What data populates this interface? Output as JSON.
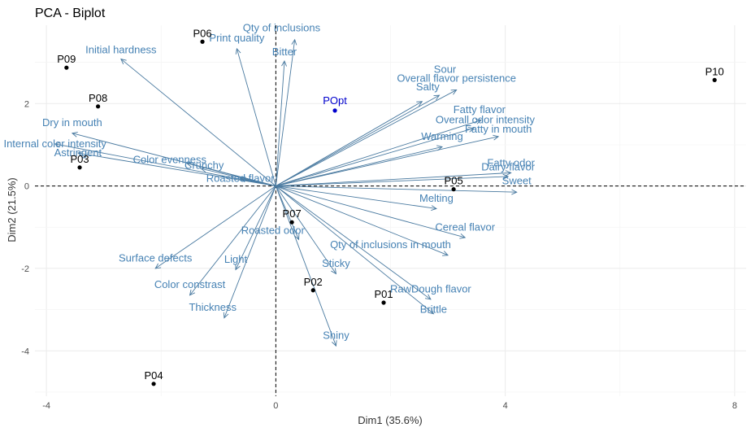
{
  "chart_data": {
    "type": "scatter",
    "title": "PCA - Biplot",
    "xlabel": "Dim1 (35.6%)",
    "ylabel": "Dim2 (21.5%)",
    "xlim": [
      -4.2,
      8.2
    ],
    "ylim": [
      -5.1,
      3.9
    ],
    "xticks": [
      -4,
      0,
      4,
      8
    ],
    "yticks": [
      -4,
      -2,
      0,
      2
    ],
    "grid": true,
    "colors": {
      "variables": "#4682b4",
      "individuals": "#000000",
      "supplementary": "#0000cd"
    },
    "individuals": [
      {
        "label": "P01",
        "x": 1.88,
        "y": -2.83
      },
      {
        "label": "P02",
        "x": 0.65,
        "y": -2.53
      },
      {
        "label": "P03",
        "x": -3.42,
        "y": 0.45
      },
      {
        "label": "P04",
        "x": -2.13,
        "y": -4.8
      },
      {
        "label": "P05",
        "x": 3.1,
        "y": -0.08
      },
      {
        "label": "P06",
        "x": -1.28,
        "y": 3.5
      },
      {
        "label": "P07",
        "x": 0.28,
        "y": -0.88
      },
      {
        "label": "P08",
        "x": -3.1,
        "y": 1.93
      },
      {
        "label": "P09",
        "x": -3.65,
        "y": 2.87
      },
      {
        "label": "P10",
        "x": 7.65,
        "y": 2.57
      }
    ],
    "supplementary": [
      {
        "label": "POpt",
        "x": 1.03,
        "y": 1.83
      }
    ],
    "variables": [
      {
        "label": "Qty of inclusions",
        "x": 0.33,
        "y": 3.55,
        "lx": 0.1,
        "ly": 3.83
      },
      {
        "label": "Print quality",
        "x": -0.68,
        "y": 3.33,
        "lx": -0.68,
        "ly": 3.58
      },
      {
        "label": "Bitter",
        "x": 0.15,
        "y": 3.03,
        "lx": 0.15,
        "ly": 3.25
      },
      {
        "label": "Initial hardness",
        "x": -2.7,
        "y": 3.08,
        "lx": -2.7,
        "ly": 3.3
      },
      {
        "label": "Sour",
        "x": 3.15,
        "y": 2.33,
        "lx": 2.95,
        "ly": 2.82
      },
      {
        "label": "Overall flavor persistence",
        "x": 2.85,
        "y": 2.2,
        "lx": 3.15,
        "ly": 2.61
      },
      {
        "label": "Salty",
        "x": 2.55,
        "y": 2.05,
        "lx": 2.65,
        "ly": 2.4
      },
      {
        "label": "Fatty flavor",
        "x": 3.58,
        "y": 1.6,
        "lx": 3.55,
        "ly": 1.85
      },
      {
        "label": "Overall odor intensity",
        "x": 3.45,
        "y": 1.4,
        "lx": 3.65,
        "ly": 1.6
      },
      {
        "label": "Fatty in mouth",
        "x": 3.88,
        "y": 1.2,
        "lx": 3.88,
        "ly": 1.37
      },
      {
        "label": "Warming",
        "x": 2.9,
        "y": 0.95,
        "lx": 2.9,
        "ly": 1.2
      },
      {
        "label": "Dry in mouth",
        "x": -3.55,
        "y": 1.28,
        "lx": -3.55,
        "ly": 1.53
      },
      {
        "label": "Internal color intensity",
        "x": -3.85,
        "y": 1.02,
        "lx": -3.85,
        "ly": 1.02
      },
      {
        "label": "Astringent",
        "x": -3.45,
        "y": 0.8,
        "lx": -3.45,
        "ly": 0.8
      },
      {
        "label": "Color evenness",
        "x": -1.55,
        "y": 0.55,
        "lx": -1.85,
        "ly": 0.63
      },
      {
        "label": "Crunchy",
        "x": -1.3,
        "y": 0.42,
        "lx": -1.25,
        "ly": 0.5
      },
      {
        "label": "Roasted flavor",
        "x": -0.62,
        "y": 0.18,
        "lx": -0.62,
        "ly": 0.18
      },
      {
        "label": "Fatty odor",
        "x": 4.1,
        "y": 0.32,
        "lx": 4.1,
        "ly": 0.55
      },
      {
        "label": "Dairy flavor",
        "x": 4.05,
        "y": 0.23,
        "lx": 4.05,
        "ly": 0.46
      },
      {
        "label": "Sweet",
        "x": 4.2,
        "y": -0.15,
        "lx": 4.2,
        "ly": 0.12
      },
      {
        "label": "Melting",
        "x": 2.8,
        "y": -0.55,
        "lx": 2.8,
        "ly": -0.3
      },
      {
        "label": "Cereal flavor",
        "x": 3.3,
        "y": -1.25,
        "lx": 3.3,
        "ly": -1.0
      },
      {
        "label": "Qty of inclusions in mouth",
        "x": 3.0,
        "y": -1.68,
        "lx": 2.0,
        "ly": -1.43
      },
      {
        "label": "Roasted odor",
        "x": 0.4,
        "y": -1.3,
        "lx": -0.05,
        "ly": -1.08
      },
      {
        "label": "Surface defects",
        "x": -2.1,
        "y": -2.0,
        "lx": -2.1,
        "ly": -1.75
      },
      {
        "label": "Light",
        "x": -0.7,
        "y": -2.03,
        "lx": -0.7,
        "ly": -1.78
      },
      {
        "label": "Sticky",
        "x": 1.05,
        "y": -2.13,
        "lx": 1.05,
        "ly": -1.88
      },
      {
        "label": "Color constrast",
        "x": -1.5,
        "y": -2.65,
        "lx": -1.5,
        "ly": -2.4
      },
      {
        "label": "RawDough flavor",
        "x": 2.7,
        "y": -2.75,
        "lx": 2.7,
        "ly": -2.5
      },
      {
        "label": "Brittle",
        "x": 2.75,
        "y": -3.1,
        "lx": 2.75,
        "ly": -3.0
      },
      {
        "label": "Thickness",
        "x": -0.9,
        "y": -3.2,
        "lx": -1.1,
        "ly": -2.95
      },
      {
        "label": "Shiny",
        "x": 1.05,
        "y": -3.88,
        "lx": 1.05,
        "ly": -3.63
      }
    ]
  }
}
